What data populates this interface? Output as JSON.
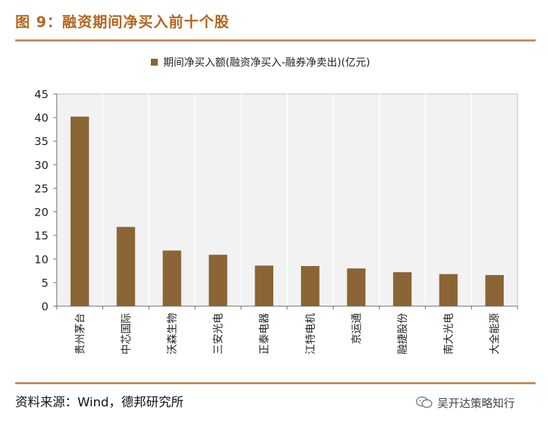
{
  "header": {
    "title": "图 9：融资期间净买入前十个股"
  },
  "footer": {
    "source": "资料来源：Wind，德邦研究所",
    "watermark": "吴开达策略知行"
  },
  "colors": {
    "accent": "#b5651d",
    "rule": "#c08a63",
    "bar": "#8b6535",
    "plot_bg": "#f2f2f2",
    "grid": "#ffffff"
  },
  "chart_data": {
    "type": "bar",
    "legend": "期间净买入额(融资净买入-融券净卖出)(亿元)",
    "legend_position": "top",
    "categories": [
      "贵州茅台",
      "中芯国际",
      "沃森生物",
      "三安光电",
      "正泰电器",
      "江特电机",
      "京运通",
      "融捷股份",
      "南大光电",
      "大全能源"
    ],
    "values": [
      40.2,
      16.8,
      11.8,
      10.9,
      8.6,
      8.5,
      8.0,
      7.2,
      6.8,
      6.6
    ],
    "ylim": [
      0,
      45
    ],
    "yticks": [
      "0",
      "5",
      "10",
      "15",
      "20",
      "25",
      "30",
      "35",
      "40",
      "45"
    ],
    "grid": true,
    "xlabel": "",
    "ylabel": ""
  }
}
